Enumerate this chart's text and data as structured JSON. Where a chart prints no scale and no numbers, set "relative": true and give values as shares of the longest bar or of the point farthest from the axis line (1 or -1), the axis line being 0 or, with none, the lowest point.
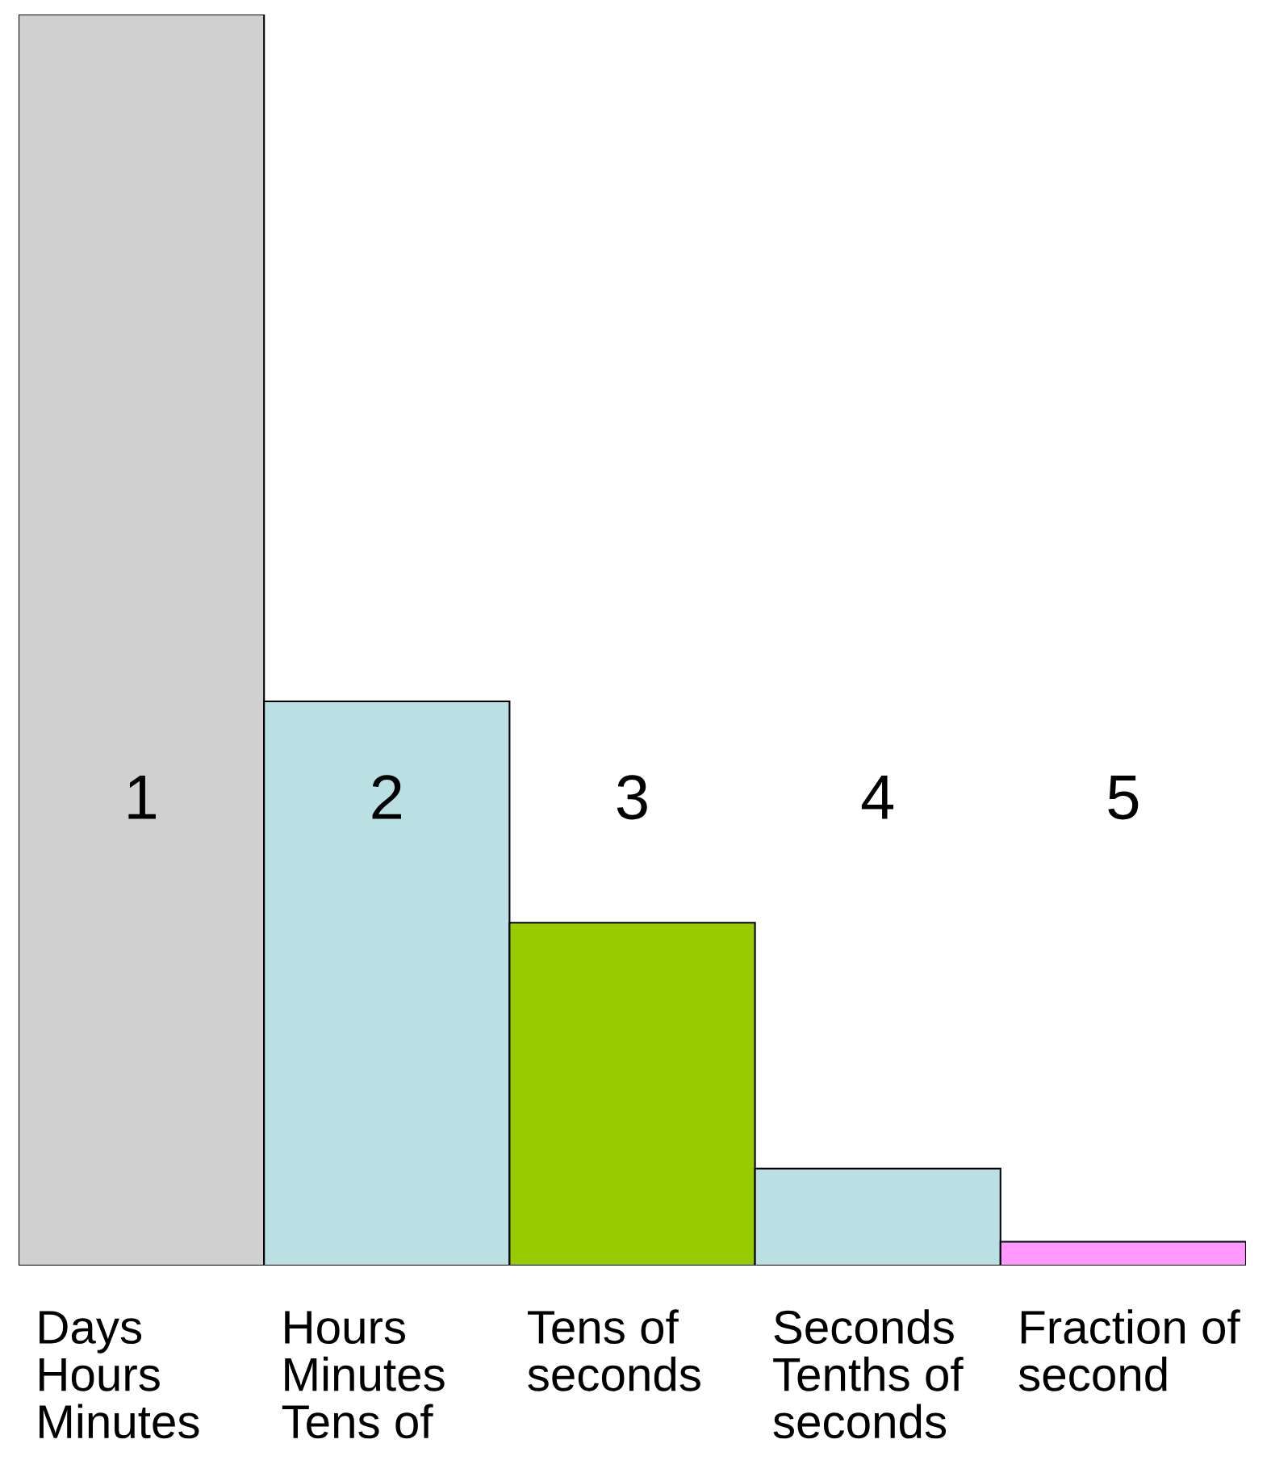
{
  "chart_data": {
    "type": "bar",
    "relative": true,
    "categories": [
      "Days\nHours\nMinutes",
      "Hours\nMinutes\nTens of",
      "Tens of\nseconds",
      "Seconds\nTenths of\nseconds",
      "Fraction of\nsecond"
    ],
    "values": [
      1,
      0.451,
      0.274,
      0.0775,
      0.019
    ],
    "colors": [
      "#d0d0d0",
      "#bae0e4",
      "#99cc00",
      "#bae0e4",
      "#ff99ff"
    ],
    "annotations": [
      "1",
      "2",
      "3",
      "4",
      "5"
    ]
  }
}
